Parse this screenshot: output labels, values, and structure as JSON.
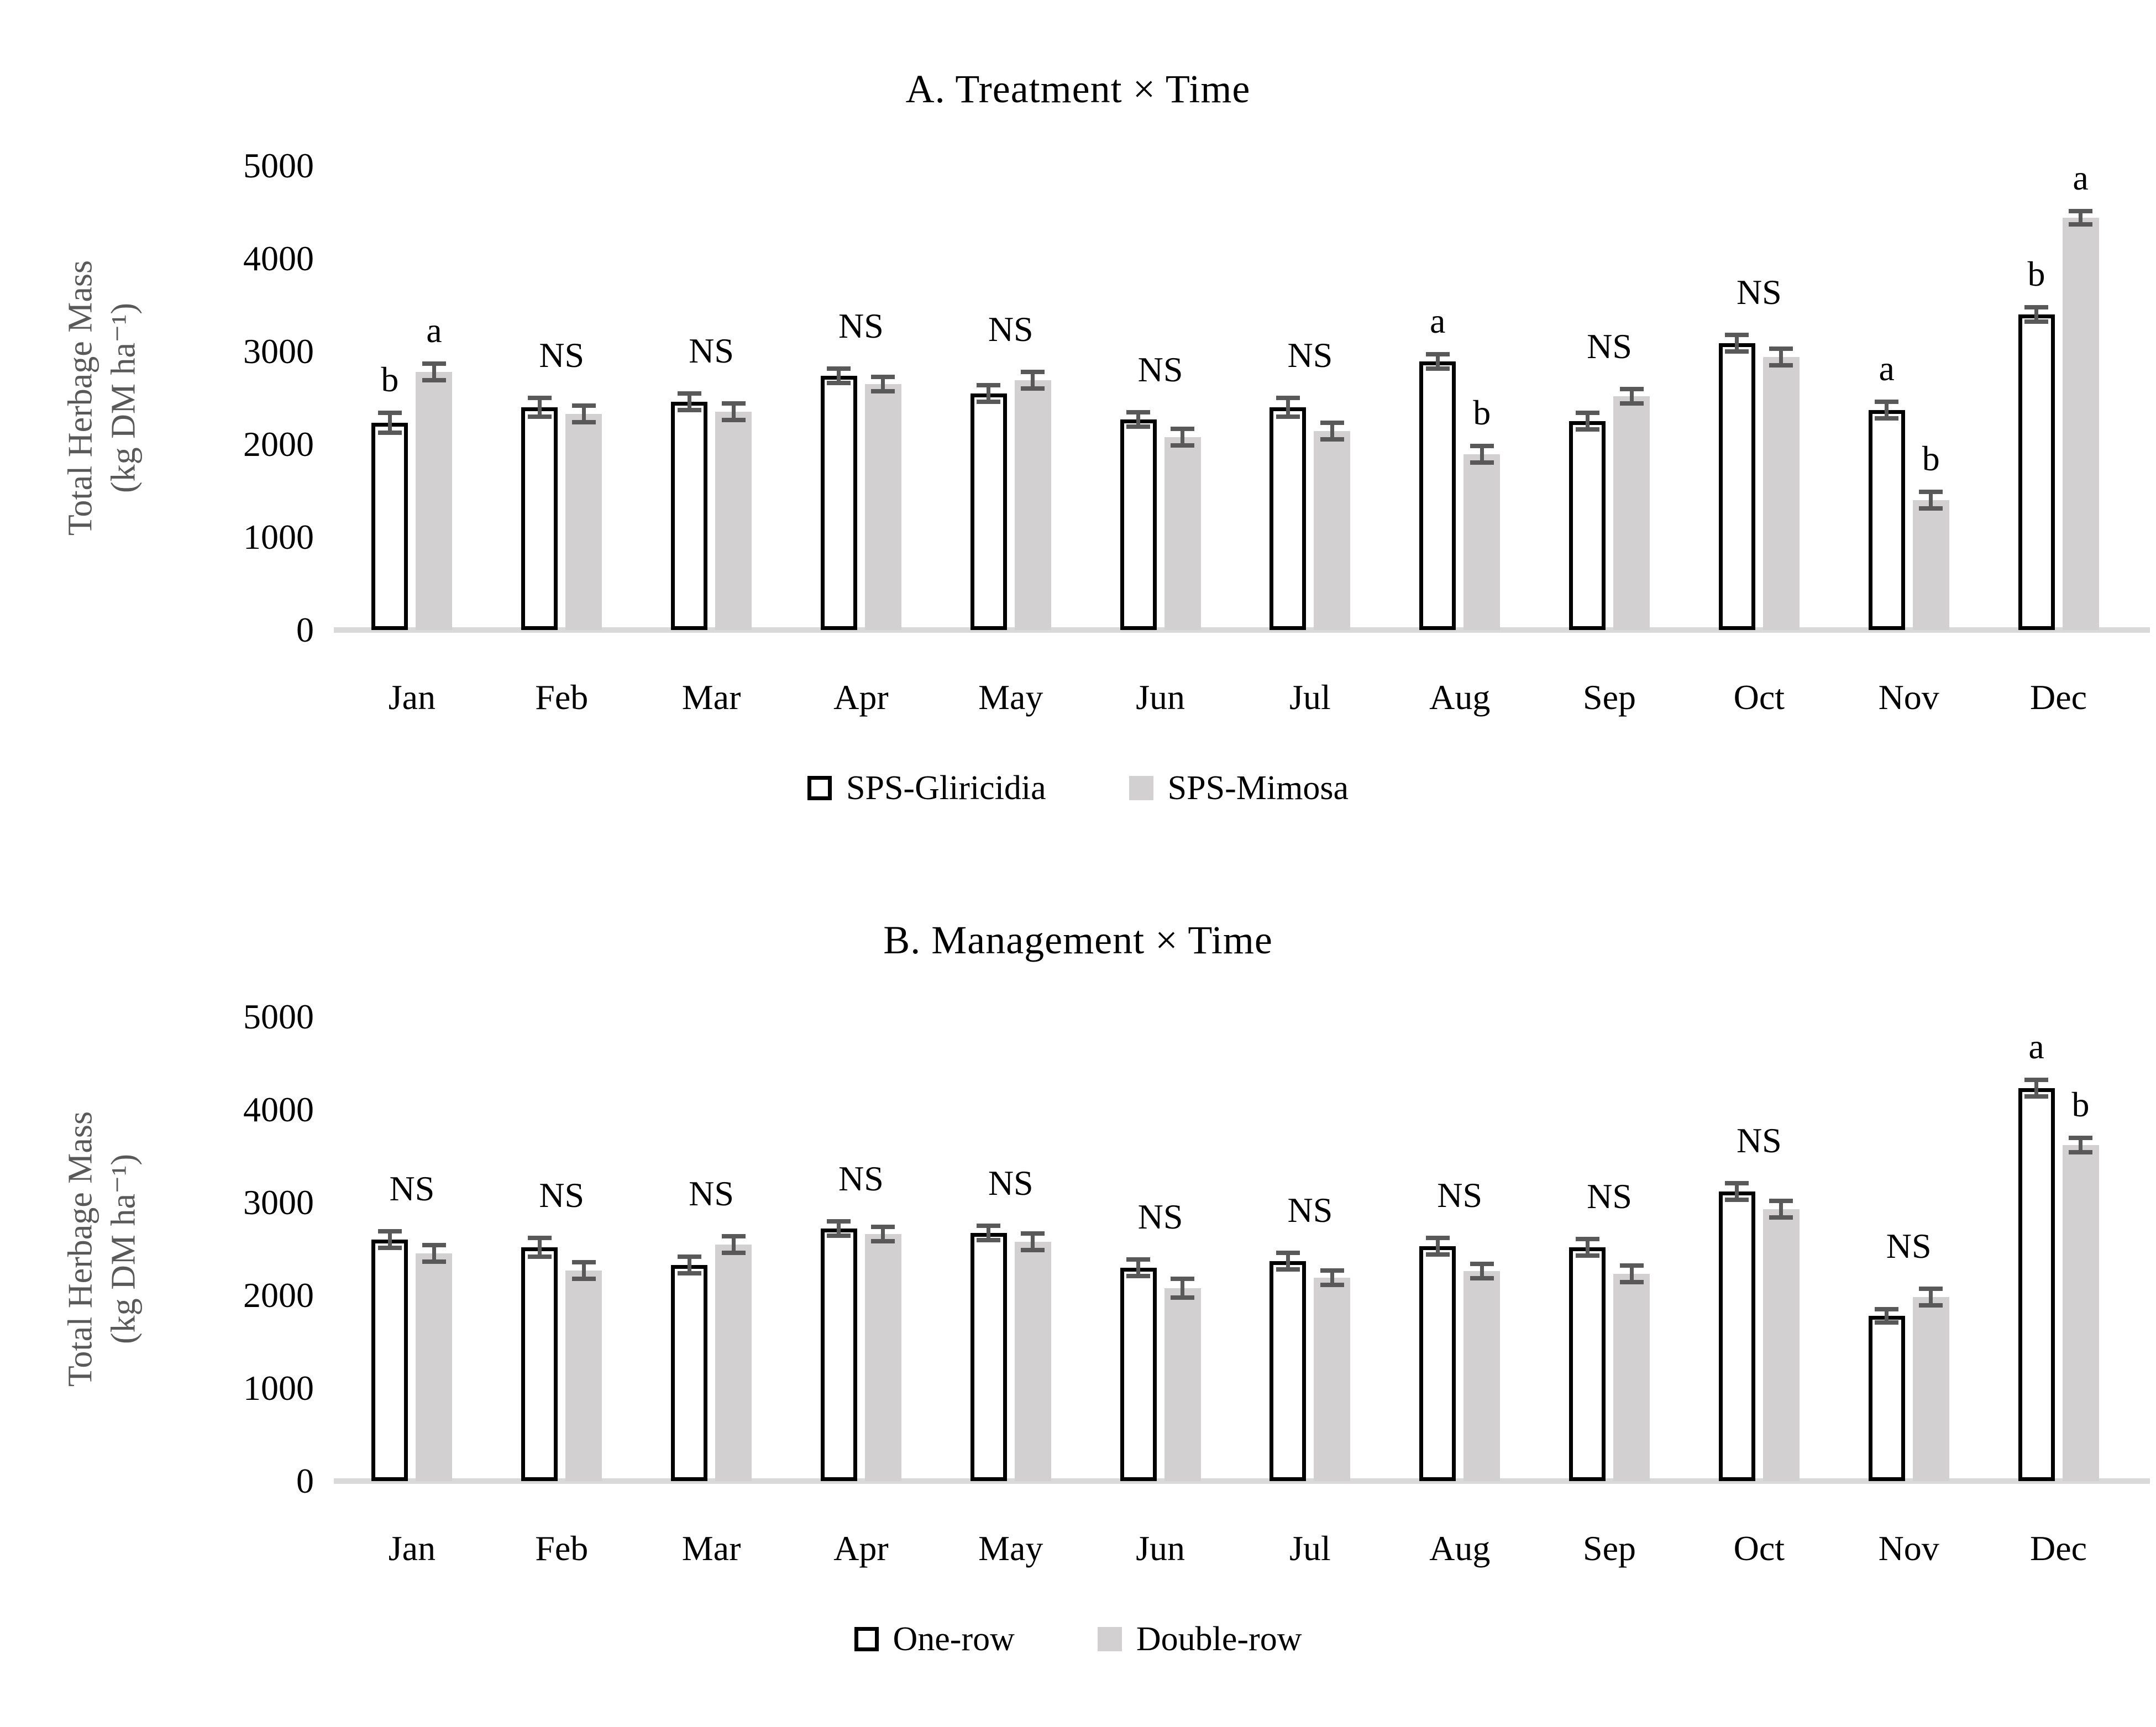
{
  "colors": {
    "bar_outline_fill": "#ffffff",
    "bar_outline_border": "#000000",
    "bar_gray_fill": "#d2d0d0",
    "error_bar": "#595959",
    "axis_line": "#d9d9d9",
    "y_axis_title": "#595959",
    "text": "#000000"
  },
  "chart_data": [
    {
      "panel": "A",
      "type": "bar",
      "title": "A. Treatment × Time",
      "ylabel_line1": "Total Herbage Mass",
      "ylabel_line2": "(kg DM ha⁻¹)",
      "ylim": [
        0,
        5000
      ],
      "yticks": [
        0,
        1000,
        2000,
        3000,
        4000,
        5000
      ],
      "grid": "off",
      "legend_position": "bottom",
      "categories": [
        "Jan",
        "Feb",
        "Mar",
        "Apr",
        "May",
        "Jun",
        "Jul",
        "Aug",
        "Sep",
        "Oct",
        "Nov",
        "Dec"
      ],
      "series": [
        {
          "name": "SPS-Gliricidia",
          "style": "outline",
          "values": [
            2230,
            2400,
            2460,
            2740,
            2550,
            2270,
            2400,
            2890,
            2250,
            3090,
            2370,
            3400
          ],
          "errors": [
            110,
            100,
            90,
            80,
            90,
            80,
            100,
            80,
            90,
            90,
            90,
            80
          ]
        },
        {
          "name": "SPS-Mimosa",
          "style": "solid-gray",
          "values": [
            2780,
            2330,
            2350,
            2650,
            2690,
            2080,
            2140,
            1890,
            2520,
            2940,
            1400,
            4440
          ],
          "errors": [
            90,
            90,
            90,
            80,
            90,
            90,
            90,
            90,
            80,
            90,
            90,
            70
          ]
        }
      ],
      "significance": [
        "b|a",
        "NS",
        "NS",
        "NS",
        "NS",
        "NS",
        "NS",
        "a|b",
        "NS",
        "NS",
        "a|b",
        "b|a"
      ]
    },
    {
      "panel": "B",
      "type": "bar",
      "title": "B. Management × Time",
      "ylabel_line1": "Total Herbage Mass",
      "ylabel_line2": "(kg DM ha⁻¹)",
      "ylim": [
        0,
        5000
      ],
      "yticks": [
        0,
        1000,
        2000,
        3000,
        4000,
        5000
      ],
      "grid": "off",
      "legend_position": "bottom",
      "categories": [
        "Jan",
        "Feb",
        "Mar",
        "Apr",
        "May",
        "Jun",
        "Jul",
        "Aug",
        "Sep",
        "Oct",
        "Nov",
        "Dec"
      ],
      "series": [
        {
          "name": "One-row",
          "style": "outline",
          "values": [
            2600,
            2520,
            2330,
            2720,
            2670,
            2300,
            2370,
            2530,
            2520,
            3120,
            1780,
            4230
          ],
          "errors": [
            90,
            100,
            90,
            80,
            80,
            90,
            90,
            90,
            90,
            90,
            70,
            90
          ]
        },
        {
          "name": "Double-row",
          "style": "solid-gray",
          "values": [
            2450,
            2270,
            2550,
            2660,
            2580,
            2080,
            2190,
            2260,
            2230,
            2930,
            1980,
            3620
          ],
          "errors": [
            90,
            90,
            90,
            80,
            90,
            100,
            80,
            80,
            90,
            90,
            90,
            80
          ]
        }
      ],
      "significance": [
        "NS",
        "NS",
        "NS",
        "NS",
        "NS",
        "NS",
        "NS",
        "NS",
        "NS",
        "NS",
        "NS",
        "a|b"
      ]
    }
  ]
}
